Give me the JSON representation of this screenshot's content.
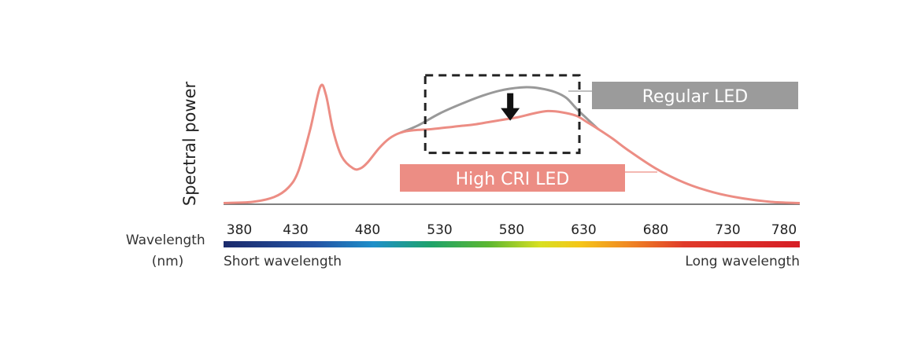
{
  "chart_data": {
    "type": "line",
    "title": "",
    "ylabel": "Spectral power",
    "xlabel": "Wavelength\n(nm)",
    "x_ticks": [
      380,
      430,
      480,
      530,
      580,
      630,
      680,
      730,
      780
    ],
    "xlim": [
      380,
      780
    ],
    "ylim": [
      0,
      1
    ],
    "spectrum_bar": {
      "left_label": "Short wavelength",
      "right_label": "Long wavelength"
    },
    "series": [
      {
        "name": "High CRI LED",
        "color": "#ec8d84",
        "x": [
          380,
          400,
          415,
          425,
          432,
          440,
          447,
          451,
          456,
          462,
          470,
          475,
          480,
          488,
          495,
          503,
          512,
          525,
          540,
          555,
          565,
          575,
          585,
          595,
          605,
          615,
          625,
          632,
          640,
          650,
          660,
          680,
          700,
          720,
          740,
          760,
          780
        ],
        "y": [
          0.01,
          0.02,
          0.06,
          0.14,
          0.28,
          0.62,
          0.98,
          0.92,
          0.62,
          0.4,
          0.3,
          0.3,
          0.35,
          0.47,
          0.55,
          0.6,
          0.62,
          0.63,
          0.65,
          0.67,
          0.69,
          0.71,
          0.73,
          0.76,
          0.78,
          0.77,
          0.74,
          0.69,
          0.63,
          0.55,
          0.46,
          0.3,
          0.18,
          0.1,
          0.05,
          0.02,
          0.01
        ]
      },
      {
        "name": "Regular LED",
        "color": "#999999",
        "x": [
          503,
          515,
          530,
          545,
          560,
          575,
          590,
          600,
          610,
          618,
          625,
          632,
          640
        ],
        "y": [
          0.6,
          0.66,
          0.76,
          0.84,
          0.91,
          0.96,
          0.98,
          0.97,
          0.94,
          0.89,
          0.8,
          0.72,
          0.63
        ]
      }
    ],
    "annotations": {
      "highlight_box_x": [
        520,
        627
      ],
      "highlight_box_y": [
        0.43,
        1.08
      ],
      "arrow_x": 579,
      "arrow_from_y": 0.93,
      "arrow_to_y": 0.7
    }
  }
}
